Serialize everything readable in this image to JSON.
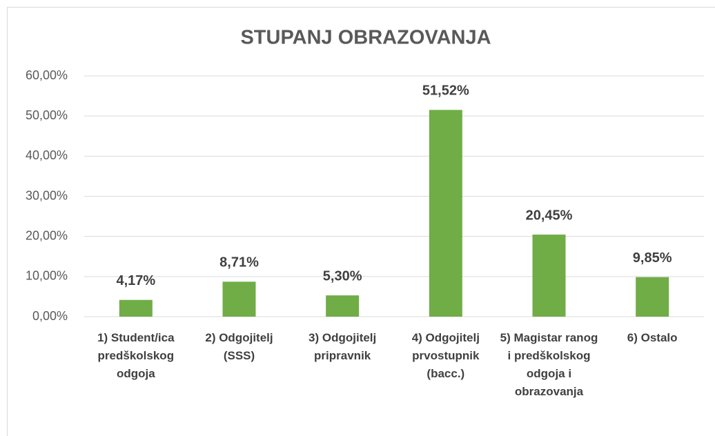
{
  "chart_data": {
    "type": "bar",
    "title": "STUPANJ OBRAZOVANJA",
    "categories": [
      "1) Student/ica predškolskog odgoja",
      "2) Odgojitelj (SSS)",
      "3) Odgojitelj pripravnik",
      "4) Odgojitelj prvostupnik (bacc.)",
      "5) Magistar ranog i predškolskog odgoja i obrazovanja",
      "6) Ostalo"
    ],
    "values": [
      4.17,
      8.71,
      5.3,
      51.52,
      20.45,
      9.85
    ],
    "value_labels": [
      "4,17%",
      "8,71%",
      "5,30%",
      "51,52%",
      "20,45%",
      "9,85%"
    ],
    "color": "#70ad47",
    "ylim": [
      0,
      60
    ],
    "yticks": [
      {
        "value": 0,
        "label": "0,00%"
      },
      {
        "value": 10,
        "label": "10,00%"
      },
      {
        "value": 20,
        "label": "20,00%"
      },
      {
        "value": 30,
        "label": "30,00%"
      },
      {
        "value": 40,
        "label": "40,00%"
      },
      {
        "value": 50,
        "label": "50,00%"
      },
      {
        "value": 60,
        "label": "60,00%"
      }
    ],
    "grid": true
  }
}
